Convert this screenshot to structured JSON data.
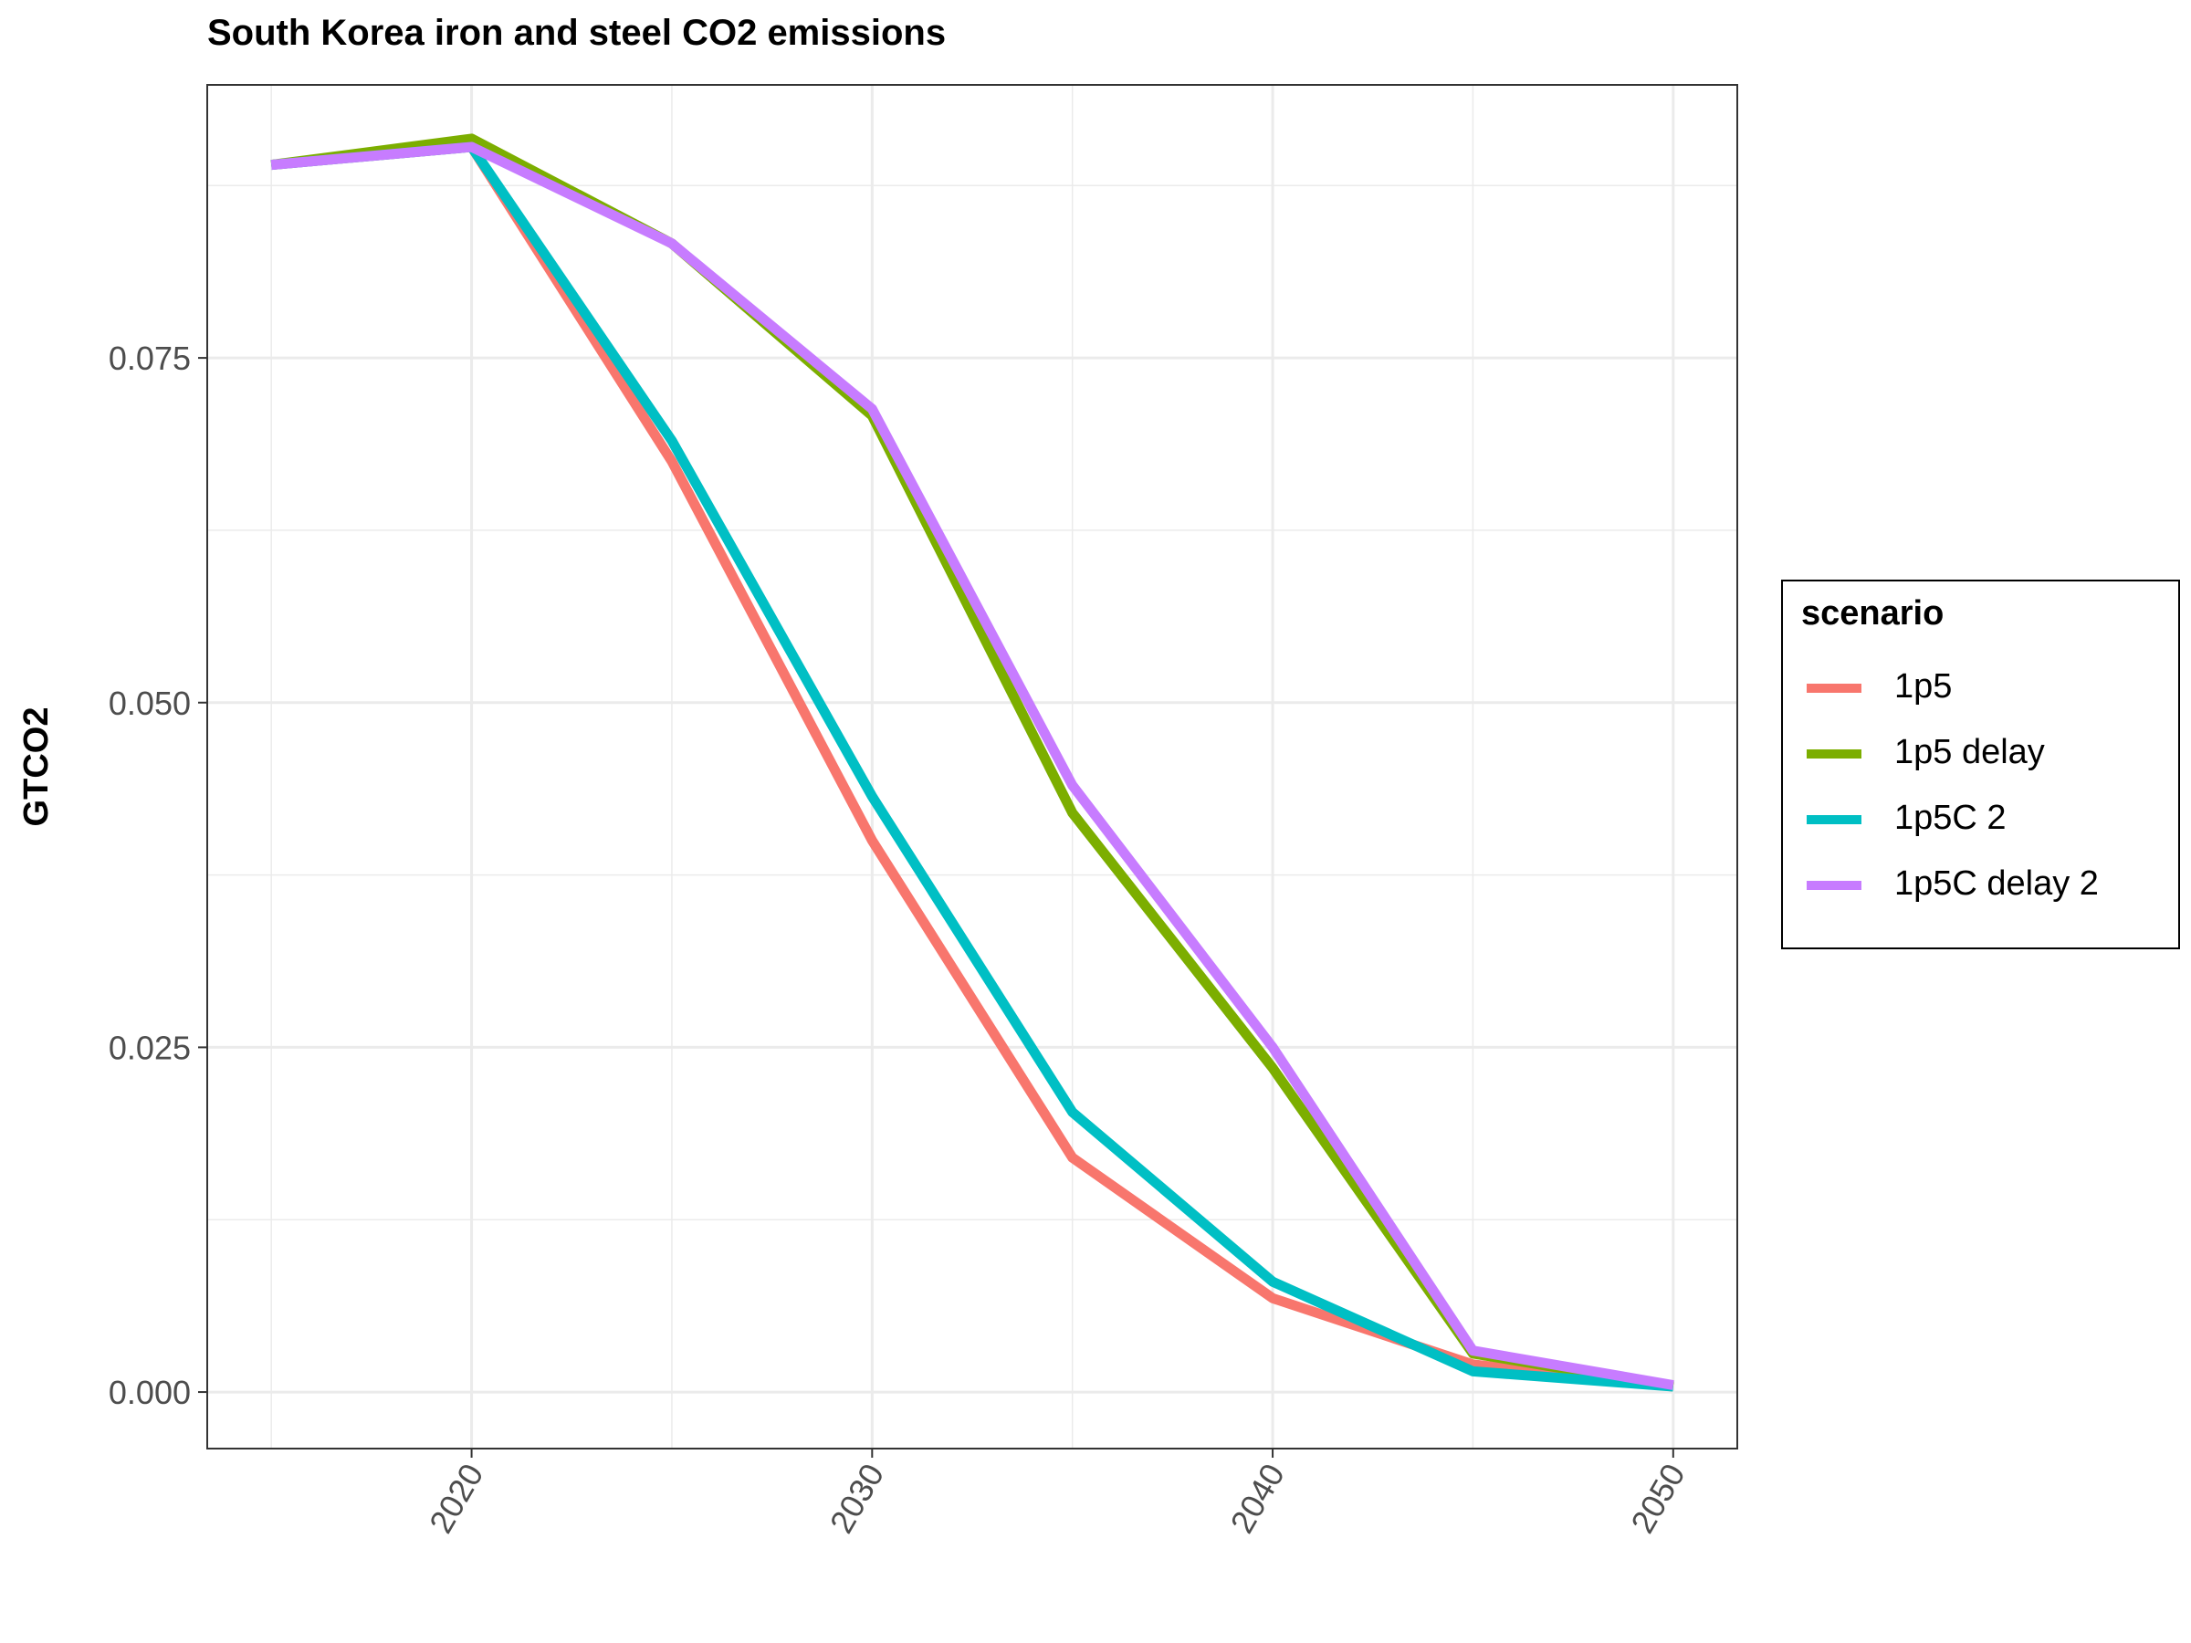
{
  "chart_data": {
    "type": "line",
    "title": "South Korea iron and steel CO2 emissions",
    "xlabel": "",
    "ylabel": "GTCO2",
    "x": [
      2015,
      2020,
      2025,
      2030,
      2035,
      2040,
      2045,
      2050
    ],
    "xlim": [
      2013.4,
      2051.6
    ],
    "ylim": [
      -0.0041,
      0.0948
    ],
    "x_ticks": [
      2020,
      2030,
      2040,
      2050
    ],
    "x_tick_labels": [
      "2020",
      "2030",
      "2040",
      "2050"
    ],
    "y_ticks": [
      0.0,
      0.025,
      0.05,
      0.075
    ],
    "y_tick_labels": [
      "0.000",
      "0.025",
      "0.050",
      "0.075"
    ],
    "grid": true,
    "legend_position": "right",
    "legend_title": "scenario",
    "series": [
      {
        "name": "1p5",
        "color": "#F8766D",
        "values": [
          0.089,
          0.0903,
          0.0675,
          0.04,
          0.017,
          0.0068,
          0.002,
          0.0004
        ]
      },
      {
        "name": "1p5 delay",
        "color": "#7CAE00",
        "values": [
          0.089,
          0.0909,
          0.0833,
          0.0708,
          0.042,
          0.0235,
          0.0028,
          0.0004
        ]
      },
      {
        "name": "1p5C 2",
        "color": "#00BFC4",
        "values": [
          0.089,
          0.0903,
          0.069,
          0.0432,
          0.0203,
          0.008,
          0.0015,
          0.0004
        ]
      },
      {
        "name": "1p5C delay 2",
        "color": "#C77CFF",
        "values": [
          0.089,
          0.0903,
          0.0833,
          0.0713,
          0.044,
          0.025,
          0.003,
          0.0005
        ]
      }
    ]
  }
}
